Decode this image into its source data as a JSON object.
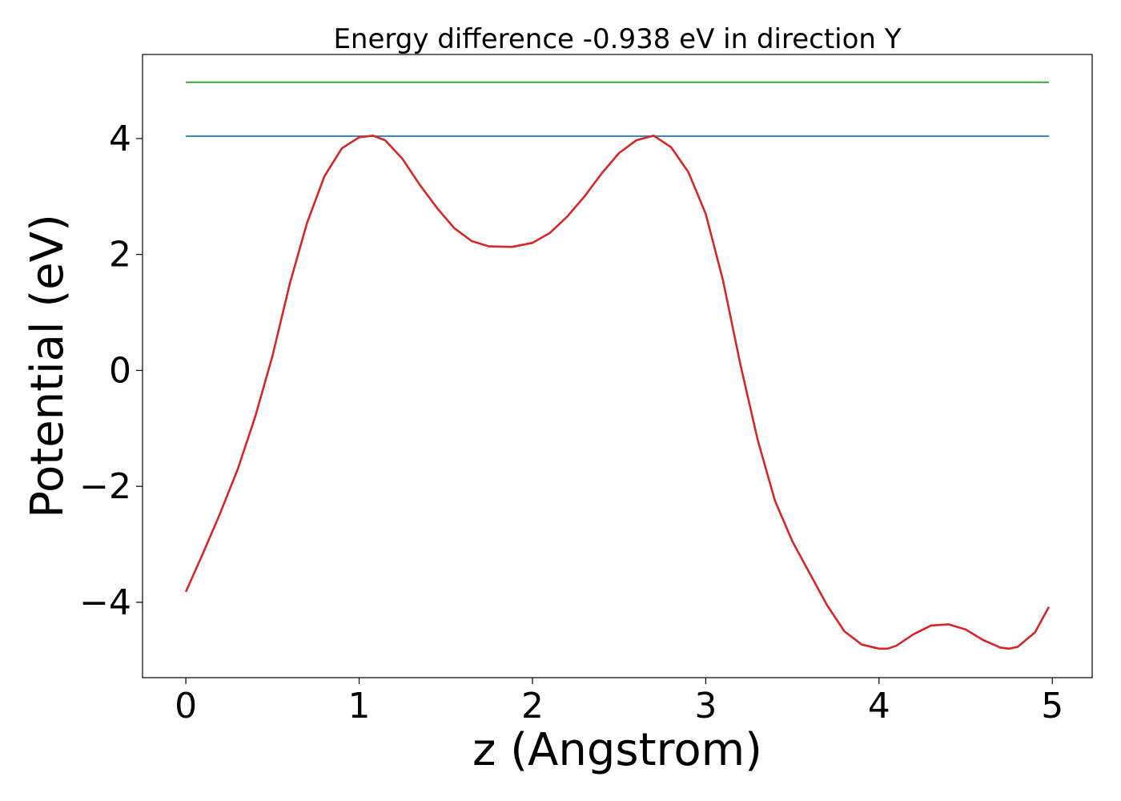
{
  "chart_data": {
    "type": "line",
    "title": "Energy difference -0.938 eV in direction Y",
    "xlabel": "z (Angstrom)",
    "ylabel": "Potential (eV)",
    "xlim": [
      -0.25,
      5.23
    ],
    "ylim": [
      -5.3,
      5.45
    ],
    "grid": false,
    "legend": "none",
    "x_ticks": [
      {
        "value": 0,
        "label": "0"
      },
      {
        "value": 1,
        "label": "1"
      },
      {
        "value": 2,
        "label": "2"
      },
      {
        "value": 3,
        "label": "3"
      },
      {
        "value": 4,
        "label": "4"
      },
      {
        "value": 5,
        "label": "5"
      }
    ],
    "y_ticks": [
      {
        "value": -4,
        "label": "−4"
      },
      {
        "value": -2,
        "label": "−2"
      },
      {
        "value": 0,
        "label": "0"
      },
      {
        "value": 2,
        "label": "2"
      },
      {
        "value": 4,
        "label": "4"
      }
    ],
    "series": [
      {
        "color": "#2ca02c",
        "x": [
          0,
          4.98
        ],
        "y": [
          4.97,
          4.97
        ]
      },
      {
        "color": "#1f77b4",
        "x": [
          0,
          4.98
        ],
        "y": [
          4.04,
          4.04
        ]
      },
      {
        "color": "#d62728",
        "x": [
          0.0,
          0.1,
          0.2,
          0.3,
          0.4,
          0.5,
          0.6,
          0.7,
          0.8,
          0.9,
          1.0,
          1.08,
          1.15,
          1.25,
          1.35,
          1.45,
          1.55,
          1.65,
          1.75,
          1.88,
          2.0,
          2.1,
          2.2,
          2.3,
          2.4,
          2.5,
          2.6,
          2.7,
          2.8,
          2.9,
          3.0,
          3.1,
          3.2,
          3.3,
          3.4,
          3.5,
          3.6,
          3.7,
          3.8,
          3.9,
          4.0,
          4.05,
          4.1,
          4.2,
          4.3,
          4.4,
          4.5,
          4.6,
          4.7,
          4.75,
          4.8,
          4.9,
          4.98
        ],
        "y": [
          -3.82,
          -3.15,
          -2.45,
          -1.7,
          -0.8,
          0.25,
          1.5,
          2.55,
          3.35,
          3.83,
          4.02,
          4.05,
          3.97,
          3.65,
          3.2,
          2.8,
          2.45,
          2.23,
          2.14,
          2.13,
          2.2,
          2.37,
          2.65,
          3.0,
          3.4,
          3.75,
          3.97,
          4.05,
          3.85,
          3.42,
          2.7,
          1.55,
          0.1,
          -1.2,
          -2.25,
          -2.95,
          -3.5,
          -4.05,
          -4.5,
          -4.73,
          -4.8,
          -4.8,
          -4.75,
          -4.55,
          -4.4,
          -4.38,
          -4.47,
          -4.65,
          -4.78,
          -4.8,
          -4.77,
          -4.52,
          -4.08
        ]
      }
    ]
  }
}
